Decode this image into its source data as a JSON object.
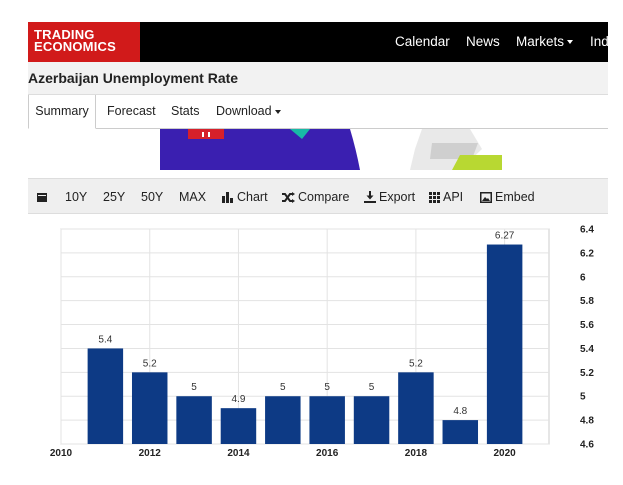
{
  "brand": {
    "line1": "TRADING",
    "line2": "ECONOMICS"
  },
  "nav": {
    "items": [
      "Calendar",
      "News",
      "Markets",
      "Ind"
    ]
  },
  "page": {
    "title": "Azerbaijan Unemployment Rate"
  },
  "tabs": [
    "Summary",
    "Forecast",
    "Stats",
    "Download"
  ],
  "toolbar": {
    "ranges": [
      "10Y",
      "25Y",
      "50Y",
      "MAX"
    ],
    "chart_label": "Chart",
    "compare_label": "Compare",
    "export_label": "Export",
    "api_label": "API",
    "embed_label": "Embed"
  },
  "colors": {
    "bar": "#0d3a85",
    "brand_red": "#d11a1a",
    "nav_bg": "#000000"
  },
  "chart_data": {
    "type": "bar",
    "title": "",
    "xlabel": "",
    "ylabel": "",
    "x": [
      2011,
      2012,
      2013,
      2014,
      2015,
      2016,
      2017,
      2018,
      2019,
      2020
    ],
    "values": [
      5.4,
      5.2,
      5,
      4.9,
      5,
      5,
      5,
      5.2,
      4.8,
      6.27
    ],
    "value_labels": [
      "5.4",
      "5.2",
      "5",
      "4.9",
      "5",
      "5",
      "5",
      "5.2",
      "4.8",
      "6.27"
    ],
    "x_ticks": [
      "2010",
      "2012",
      "2014",
      "2016",
      "2018",
      "2020"
    ],
    "x_tick_values": [
      2010,
      2012,
      2014,
      2016,
      2018,
      2020
    ],
    "y_ticks": [
      "4.6",
      "4.8",
      "5",
      "5.2",
      "5.4",
      "5.6",
      "5.8",
      "6",
      "6.2",
      "6.4"
    ],
    "y_tick_values": [
      4.6,
      4.8,
      5,
      5.2,
      5.4,
      5.6,
      5.8,
      6,
      6.2,
      6.4
    ],
    "xlim": [
      2010,
      2021
    ],
    "ylim": [
      4.6,
      6.4
    ],
    "y_axis_side": "right",
    "grid": true
  }
}
